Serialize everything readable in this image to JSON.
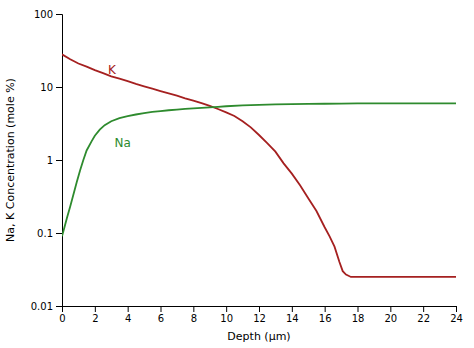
{
  "chart_data": {
    "type": "line",
    "xlabel": "Depth (μm)",
    "ylabel": "Na, K Concentration (mole %)",
    "log": "y",
    "grid": false,
    "xlim": [
      0,
      24
    ],
    "ylim": [
      0.01,
      100
    ],
    "xticks": [
      0,
      2,
      4,
      6,
      8,
      10,
      12,
      14,
      16,
      18,
      20,
      22,
      24
    ],
    "yticks": [
      0.01,
      0.1,
      1,
      10,
      100
    ],
    "series": [
      {
        "color": "#a52020",
        "x": [
          0,
          0.5,
          1,
          1.5,
          2,
          2.5,
          3,
          3.5,
          4,
          4.5,
          5,
          5.5,
          6,
          6.5,
          7,
          7.5,
          8,
          8.5,
          9,
          9.5,
          10,
          10.5,
          11,
          11.5,
          12,
          12.5,
          13,
          13.5,
          14,
          14.5,
          15,
          15.5,
          16,
          16.3,
          16.6,
          16.9,
          17.1,
          17.3,
          17.6,
          18,
          19,
          20,
          21,
          22,
          23,
          24
        ],
        "values": [
          28,
          24,
          21,
          19,
          17,
          15.5,
          14,
          13,
          12,
          11,
          10.2,
          9.5,
          8.8,
          8.2,
          7.6,
          7.0,
          6.5,
          6.0,
          5.5,
          5.0,
          4.5,
          4.0,
          3.4,
          2.8,
          2.2,
          1.7,
          1.3,
          0.9,
          0.65,
          0.45,
          0.3,
          0.2,
          0.12,
          0.09,
          0.065,
          0.04,
          0.03,
          0.027,
          0.025,
          0.025,
          0.025,
          0.025,
          0.025,
          0.025,
          0.025,
          0.025
        ]
      },
      {
        "color": "#2e8b2e",
        "x": [
          0,
          0.15,
          0.3,
          0.5,
          0.7,
          0.9,
          1.1,
          1.3,
          1.5,
          1.8,
          2.0,
          2.3,
          2.6,
          3.0,
          3.5,
          4.0,
          4.5,
          5.0,
          5.5,
          6.0,
          6.5,
          7.0,
          7.5,
          8.0,
          8.5,
          9.0,
          9.5,
          10.0,
          11.0,
          12.0,
          13.0,
          14.0,
          15.0,
          16.0,
          17.0,
          18.0,
          19.0,
          20.0,
          21.0,
          22.0,
          23.0,
          24.0
        ],
        "values": [
          0.09,
          0.12,
          0.16,
          0.23,
          0.34,
          0.5,
          0.72,
          1.0,
          1.35,
          1.8,
          2.15,
          2.6,
          3.0,
          3.4,
          3.75,
          4.0,
          4.2,
          4.38,
          4.55,
          4.68,
          4.8,
          4.9,
          5.0,
          5.1,
          5.18,
          5.25,
          5.35,
          5.45,
          5.6,
          5.7,
          5.78,
          5.83,
          5.87,
          5.9,
          5.93,
          5.95,
          5.95,
          5.95,
          5.95,
          5.95,
          5.95,
          5.95
        ]
      }
    ],
    "annotations": [
      {
        "text": "K",
        "x": 2.8,
        "y": 15.0,
        "color": "#a52020"
      },
      {
        "text": "Na",
        "x": 3.2,
        "y": 1.5,
        "color": "#2e8b2e"
      }
    ]
  }
}
